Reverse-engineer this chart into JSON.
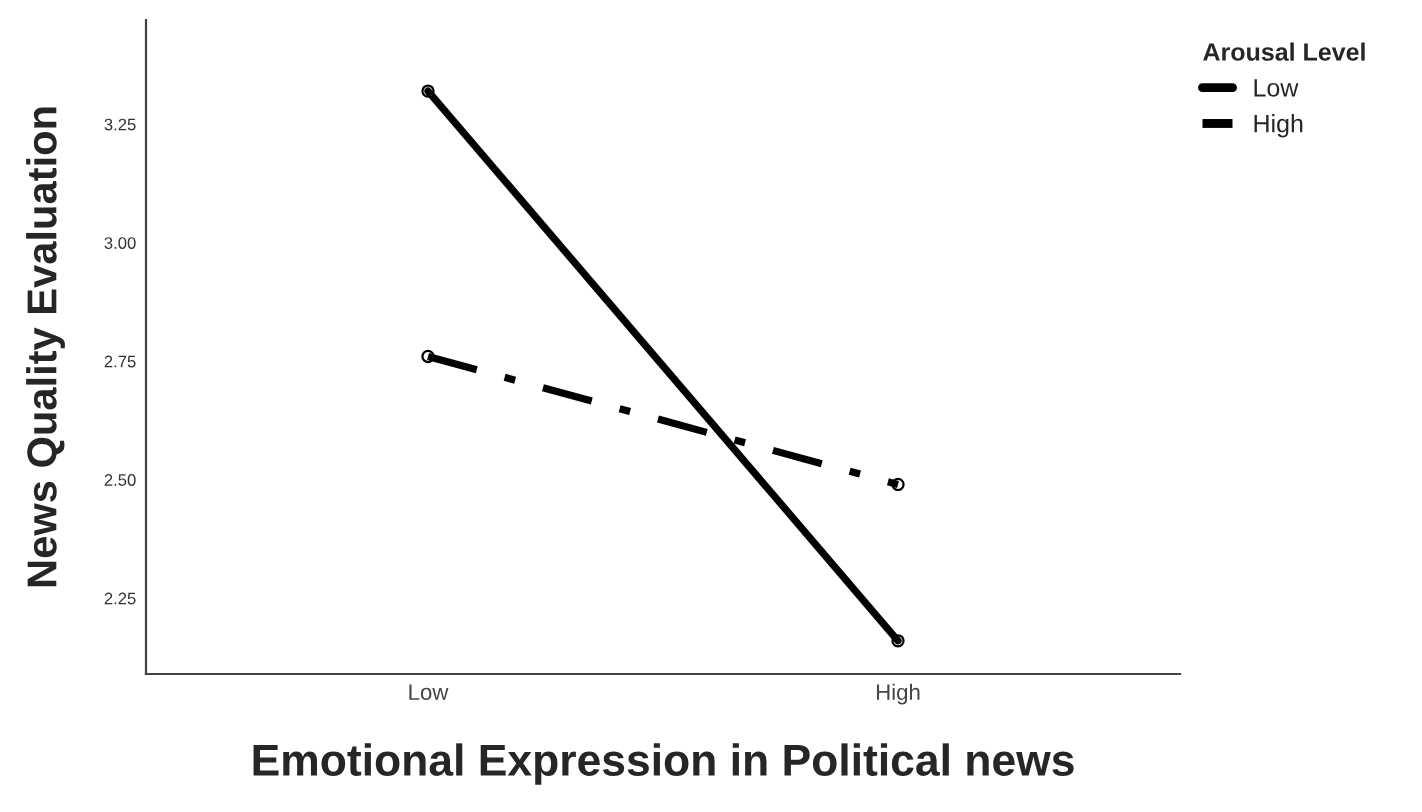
{
  "chart_data": {
    "type": "line",
    "xlabel": "Emotional Expression in Political news",
    "ylabel": "News Quality Evaluation",
    "legend_title": "Arousal Level",
    "categories": [
      "Low",
      "High"
    ],
    "series": [
      {
        "name": "Low",
        "color": "#000000",
        "values": [
          3.32,
          2.16
        ],
        "line_style": "solid"
      },
      {
        "name": "High",
        "color": "#000000",
        "values": [
          2.76,
          2.49
        ],
        "line_style": "dashed"
      }
    ],
    "ylim": [
      2.09,
      3.47
    ],
    "yticks": [
      {
        "value": 2.25,
        "label": "2.25"
      },
      {
        "value": 2.5,
        "label": "2.50"
      },
      {
        "value": 2.75,
        "label": "2.75"
      },
      {
        "value": 3.0,
        "label": "3.00"
      },
      {
        "value": 3.25,
        "label": "3.25"
      }
    ],
    "marker": "circle",
    "grid": false,
    "legend": "top right"
  }
}
